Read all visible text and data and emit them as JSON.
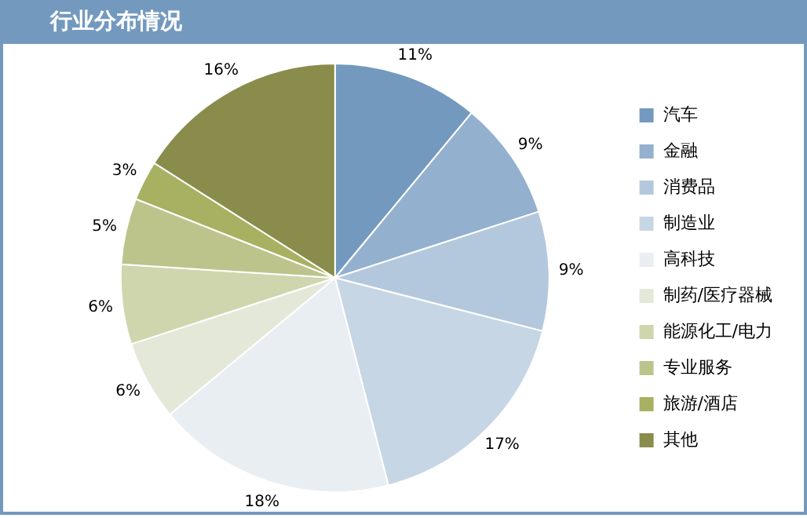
{
  "chart_data": {
    "type": "pie",
    "title": "行业分布情况",
    "categories": [
      "汽车",
      "金融",
      "消费品",
      "制造业",
      "高科技",
      "制药/医疗器械",
      "能源化工/电力",
      "专业服务",
      "旅游/酒店",
      "其他"
    ],
    "values": [
      11,
      9,
      9,
      17,
      18,
      6,
      6,
      5,
      3,
      16
    ],
    "value_labels": [
      "11%",
      "9%",
      "9%",
      "17%",
      "18%",
      "6%",
      "6%",
      "5%",
      "3%",
      "16%"
    ],
    "colors": [
      "#7399bf",
      "#93b0cf",
      "#b4c8dd",
      "#c7d6e5",
      "#e9eef3",
      "#e4e8d8",
      "#cfd6ad",
      "#bcc48c",
      "#a8b062",
      "#8a8c4c"
    ],
    "legend": "right"
  }
}
